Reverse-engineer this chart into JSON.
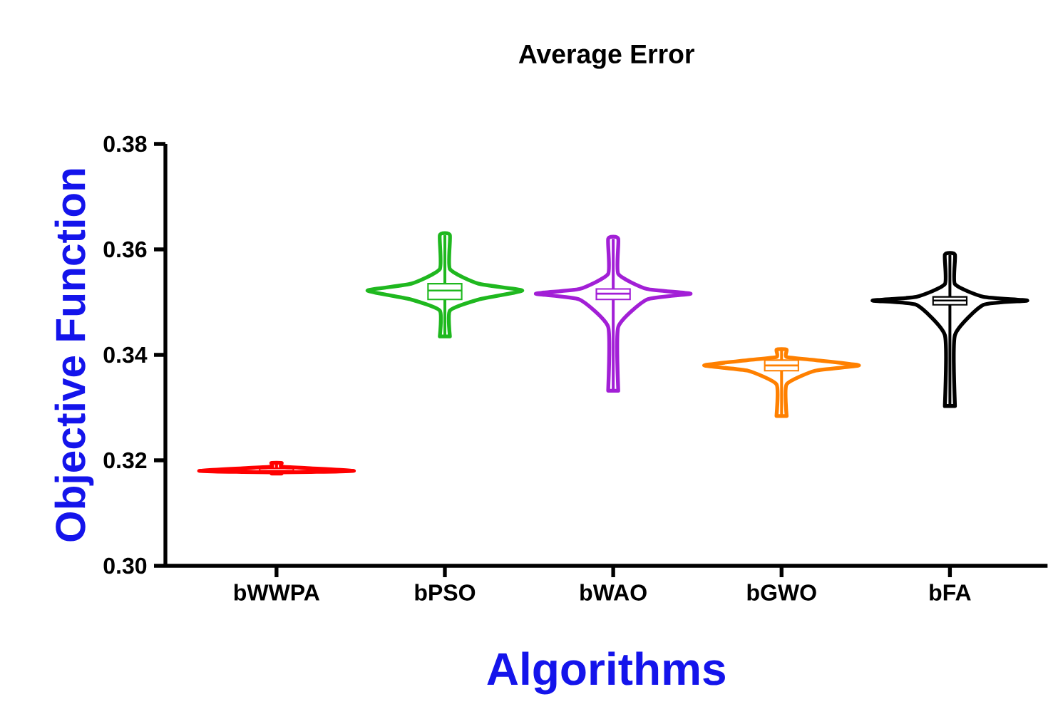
{
  "chart_data": {
    "type": "box",
    "title": "Average Error",
    "xlabel": "Algorithms",
    "ylabel": "Objective Function",
    "categories": [
      "bWWPA",
      "bPSO",
      "bWAO",
      "bGWO",
      "bFA"
    ],
    "colors": [
      "#ff0000",
      "#1fb81f",
      "#a21fd6",
      "#ff8000",
      "#000000"
    ],
    "boxes": [
      {
        "low": 0.3175,
        "q1": 0.3178,
        "median": 0.318,
        "q3": 0.3185,
        "high": 0.3195
      },
      {
        "low": 0.3435,
        "q1": 0.3505,
        "median": 0.3522,
        "q3": 0.3535,
        "high": 0.3627
      },
      {
        "low": 0.3332,
        "q1": 0.3505,
        "median": 0.3516,
        "q3": 0.3525,
        "high": 0.362
      },
      {
        "low": 0.3284,
        "q1": 0.337,
        "median": 0.338,
        "q3": 0.339,
        "high": 0.341
      },
      {
        "low": 0.3303,
        "q1": 0.3495,
        "median": 0.3503,
        "q3": 0.351,
        "high": 0.359
      }
    ],
    "ylim": [
      0.3,
      0.38
    ],
    "yticks": [
      {
        "value": 0.3,
        "label": "0.30"
      },
      {
        "value": 0.32,
        "label": "0.32"
      },
      {
        "value": 0.34,
        "label": "0.34"
      },
      {
        "value": 0.36,
        "label": "0.36"
      },
      {
        "value": 0.38,
        "label": "0.38"
      }
    ]
  }
}
